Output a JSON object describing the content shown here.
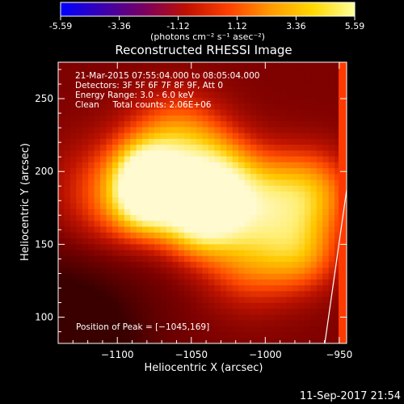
{
  "chart_data": {
    "type": "heatmap",
    "title": "Reconstructed RHESSI Image",
    "colorbar": {
      "ticks": [
        "-5.59",
        "-3.36",
        "-1.12",
        "1.12",
        "3.36",
        "5.59"
      ],
      "tick_values": [
        -5.59,
        -3.36,
        -1.12,
        1.12,
        3.36,
        5.59
      ],
      "range": [
        -5.59,
        5.59
      ],
      "unit_label": "(photons cm⁻² s⁻¹ asec⁻²)",
      "colormap": [
        "#0000ff",
        "#3b00b0",
        "#7a0060",
        "#c01000",
        "#ff4000",
        "#ff9a00",
        "#ffd800",
        "#ffff9a"
      ]
    },
    "xlabel": "Heliocentric X (arcsec)",
    "ylabel": "Heliocentric Y (arcsec)",
    "xlim": [
      -1140,
      -945
    ],
    "ylim": [
      82,
      275
    ],
    "xticks": [
      -1100,
      -1050,
      -1000,
      -950
    ],
    "xtick_labels": [
      "−1100",
      "−1050",
      "−1000",
      "−950"
    ],
    "yticks": [
      100,
      150,
      200,
      250
    ],
    "ytick_labels": [
      "100",
      "150",
      "200",
      "250"
    ],
    "annotations": [
      "21-Mar-2015 07:55:04.000 to 08:05:04.000",
      "Detectors: 3F 5F 6F 7F 8F 9F, Att 0",
      "Energy Range: 3.0 - 6.0 keV",
      "Clean     Total counts: 2.06E+06"
    ],
    "peak_label": "Position of Peak = [−1045,169]",
    "peak_position": [
      -1045,
      169
    ],
    "sources": [
      {
        "x": -1045,
        "y": 169,
        "intensity": 1.0,
        "spread": 18
      },
      {
        "x": -1080,
        "y": 180,
        "intensity": 0.95,
        "spread": 16
      },
      {
        "x": -1080,
        "y": 200,
        "intensity": 0.8,
        "spread": 15
      },
      {
        "x": -1035,
        "y": 195,
        "intensity": 0.78,
        "spread": 20
      },
      {
        "x": -1060,
        "y": 220,
        "intensity": 0.6,
        "spread": 22
      },
      {
        "x": -1005,
        "y": 178,
        "intensity": 0.65,
        "spread": 22
      },
      {
        "x": -970,
        "y": 185,
        "intensity": 0.62,
        "spread": 20
      },
      {
        "x": -975,
        "y": 145,
        "intensity": 0.5,
        "spread": 18
      },
      {
        "x": -1010,
        "y": 140,
        "intensity": 0.45,
        "spread": 22
      },
      {
        "x": -1105,
        "y": 185,
        "intensity": 0.4,
        "spread": 25
      }
    ]
  },
  "footer": {
    "timestamp": "11-Sep-2017 21:54"
  }
}
